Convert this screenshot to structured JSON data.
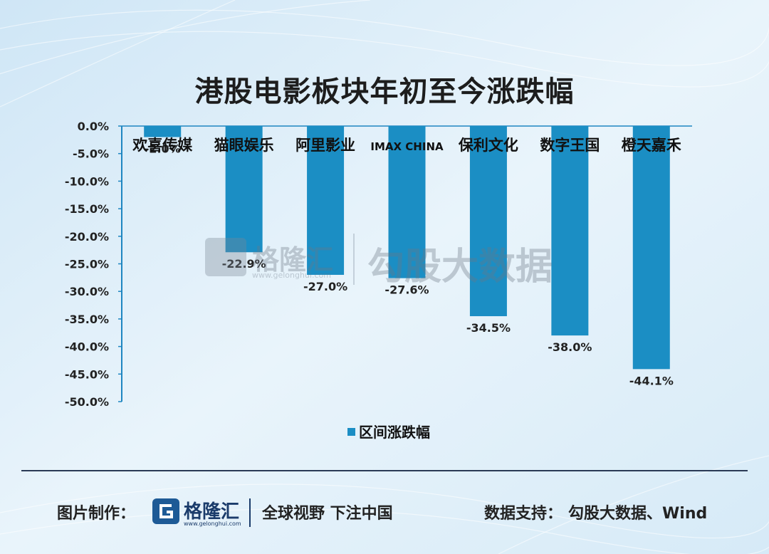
{
  "title": "港股电影板块年初至今涨跌幅",
  "chart_data": {
    "type": "bar",
    "categories": [
      "欢喜传媒",
      "猫眼娱乐",
      "阿里影业",
      "IMAX CHINA",
      "保利文化",
      "数字王国",
      "橙天嘉禾"
    ],
    "series": [
      {
        "name": "区间涨跌幅",
        "values": [
          -2.0,
          -22.9,
          -27.0,
          -27.6,
          -34.5,
          -38.0,
          -44.1
        ]
      }
    ],
    "value_labels": [
      "-2.0%",
      "-22.9%",
      "-27.0%",
      "-27.6%",
      "-34.5%",
      "-38.0%",
      "-44.1%"
    ],
    "ylim": [
      -50,
      0
    ],
    "yticks": [
      0,
      -5,
      -10,
      -15,
      -20,
      -25,
      -30,
      -35,
      -40,
      -45,
      -50
    ],
    "ytick_labels": [
      "0.0%",
      "-5.0%",
      "-10.0%",
      "-15.0%",
      "-20.0%",
      "-25.0%",
      "-30.0%",
      "-35.0%",
      "-40.0%",
      "-45.0%",
      "-50.0%"
    ],
    "legend_position": "bottom",
    "grid": false,
    "bar_color": "#1b8ec4"
  },
  "watermark": {
    "logo_text": "格隆汇",
    "logo_url": "www.gelonghui.com",
    "right_text": "勾股大数据"
  },
  "footer": {
    "left_label": "图片制作：",
    "logo_text": "格隆汇",
    "logo_url": "www.gelonghui.com",
    "slogan": "全球视野 下注中国",
    "right_label": "数据支持：",
    "right_sources": "勾股大数据、Wind"
  }
}
